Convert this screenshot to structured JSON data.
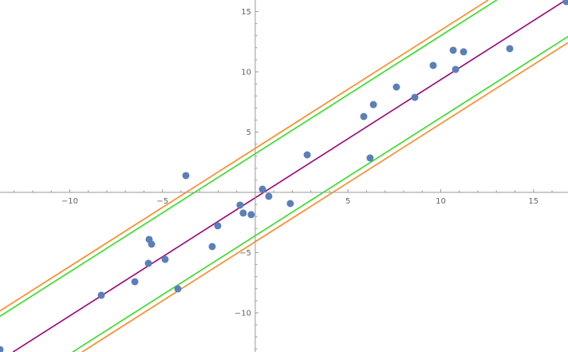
{
  "chart_data": {
    "type": "scatter",
    "title": "",
    "xlabel": "",
    "ylabel": "",
    "xlim": [
      -13.76,
      16.86
    ],
    "ylim": [
      -13.25,
      15.96
    ],
    "grid": false,
    "x_ticks": [
      -10,
      -5,
      5,
      10,
      15
    ],
    "y_ticks": [
      -10,
      -5,
      5,
      10,
      15
    ],
    "points": {
      "color": "#5b7fb8",
      "x": [
        -13.76,
        -8.3,
        -6.49,
        -5.72,
        -5.59,
        -5.76,
        -4.86,
        -4.17,
        -3.74,
        -2.32,
        -2.02,
        -0.82,
        -0.65,
        -0.22,
        0.39,
        0.73,
        1.89,
        2.8,
        5.85,
        6.19,
        6.37,
        7.61,
        8.6,
        9.59,
        10.67,
        10.8,
        11.23,
        13.72,
        16.77
      ],
      "y": [
        -13.05,
        -8.54,
        -7.42,
        -3.91,
        -4.3,
        -5.89,
        -5.56,
        -8.01,
        1.39,
        -4.5,
        -2.78,
        -1.06,
        -1.72,
        -1.85,
        0.26,
        -0.33,
        -0.93,
        3.11,
        6.29,
        2.85,
        7.28,
        8.74,
        7.88,
        10.53,
        11.79,
        10.2,
        11.66,
        11.92,
        15.83
      ]
    },
    "lines": [
      {
        "slope": 0.98,
        "intercept": -0.45,
        "color": "#990077"
      },
      {
        "slope": 0.98,
        "intercept": 3.2,
        "color": "#33dd22"
      },
      {
        "slope": 0.98,
        "intercept": -3.6,
        "color": "#33dd22"
      },
      {
        "slope": 0.98,
        "intercept": 3.65,
        "color": "#ff8822"
      },
      {
        "slope": 0.98,
        "intercept": -4.1,
        "color": "#ff8822"
      }
    ]
  }
}
